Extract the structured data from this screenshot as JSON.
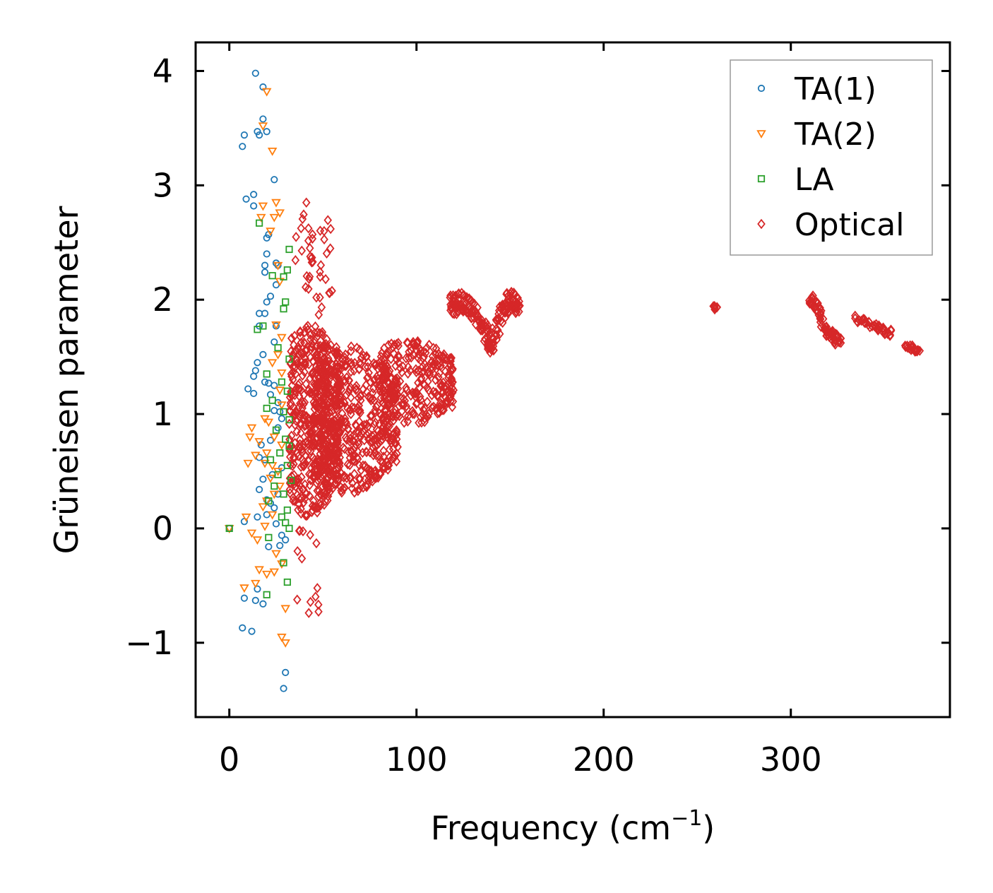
{
  "chart_data": {
    "type": "scatter",
    "xlabel": "Frequency (cm",
    "xlabel_sup": "−1",
    "xlabel_close": ")",
    "ylabel": "Grüneisen parameter",
    "xlim": [
      -18,
      385
    ],
    "ylim": [
      -1.65,
      4.25
    ],
    "xticks": [
      0,
      100,
      200,
      300
    ],
    "xtick_labels": [
      "0",
      "100",
      "200",
      "300"
    ],
    "yticks": [
      -1,
      0,
      1,
      2,
      3,
      4
    ],
    "ytick_labels": [
      "−1",
      "0",
      "1",
      "2",
      "3",
      "4"
    ],
    "legend_position": "top-right",
    "series": [
      {
        "name": "TA(1)",
        "marker": "circle",
        "color": "#1f77b4",
        "points": [
          [
            0,
            0
          ],
          [
            7,
            3.34
          ],
          [
            8,
            3.44
          ],
          [
            14,
            3.98
          ],
          [
            18,
            3.86
          ],
          [
            15,
            3.47
          ],
          [
            16,
            3.44
          ],
          [
            20,
            3.47
          ],
          [
            18,
            3.58
          ],
          [
            13,
            2.92
          ],
          [
            9,
            2.88
          ],
          [
            13,
            2.82
          ],
          [
            24,
            3.05
          ],
          [
            21,
            2.57
          ],
          [
            20,
            2.54
          ],
          [
            20,
            2.4
          ],
          [
            19,
            2.3
          ],
          [
            19,
            2.24
          ],
          [
            25,
            2.32
          ],
          [
            26,
            2.3
          ],
          [
            25,
            2.13
          ],
          [
            22,
            2.03
          ],
          [
            20,
            1.98
          ],
          [
            16,
            1.88
          ],
          [
            19,
            1.88
          ],
          [
            16,
            1.77
          ],
          [
            25,
            1.77
          ],
          [
            24,
            1.63
          ],
          [
            18,
            1.52
          ],
          [
            15,
            1.45
          ],
          [
            14,
            1.38
          ],
          [
            13,
            1.33
          ],
          [
            19,
            1.28
          ],
          [
            21,
            1.27
          ],
          [
            24,
            1.25
          ],
          [
            10,
            1.22
          ],
          [
            13,
            1.18
          ],
          [
            22,
            1.17
          ],
          [
            26,
            1.1
          ],
          [
            24,
            1.03
          ],
          [
            27,
            1.02
          ],
          [
            28,
            0.96
          ],
          [
            26,
            0.88
          ],
          [
            22,
            0.77
          ],
          [
            17,
            0.73
          ],
          [
            16,
            0.62
          ],
          [
            19,
            0.6
          ],
          [
            28,
            0.53
          ],
          [
            23,
            0.47
          ],
          [
            18,
            0.43
          ],
          [
            16,
            0.34
          ],
          [
            26,
            0.3
          ],
          [
            20,
            0.25
          ],
          [
            22,
            0.22
          ],
          [
            24,
            0.18
          ],
          [
            20,
            0.12
          ],
          [
            15,
            0.1
          ],
          [
            8,
            0.06
          ],
          [
            25,
            0.04
          ],
          [
            28,
            -0.06
          ],
          [
            30,
            -0.1
          ],
          [
            27,
            -0.15
          ],
          [
            21,
            -0.16
          ],
          [
            8,
            -0.61
          ],
          [
            14,
            -0.63
          ],
          [
            15,
            -0.53
          ],
          [
            18,
            -0.66
          ],
          [
            7,
            -0.87
          ],
          [
            12,
            -0.9
          ],
          [
            30,
            -1.26
          ],
          [
            29,
            -1.4
          ]
        ]
      },
      {
        "name": "TA(2)",
        "marker": "triangle-down",
        "color": "#ff7f0e",
        "points": [
          [
            0,
            0
          ],
          [
            20,
            3.82
          ],
          [
            18,
            3.52
          ],
          [
            23,
            3.3
          ],
          [
            25,
            2.85
          ],
          [
            18,
            2.82
          ],
          [
            24,
            2.72
          ],
          [
            17,
            2.72
          ],
          [
            27,
            2.76
          ],
          [
            22,
            2.6
          ],
          [
            26,
            2.3
          ],
          [
            27,
            2.16
          ],
          [
            25,
            1.78
          ],
          [
            28,
            1.67
          ],
          [
            26,
            1.52
          ],
          [
            23,
            1.45
          ],
          [
            28,
            1.36
          ],
          [
            27,
            1.21
          ],
          [
            28,
            1.08
          ],
          [
            21,
            0.93
          ],
          [
            19,
            0.96
          ],
          [
            12,
            0.88
          ],
          [
            11,
            0.8
          ],
          [
            16,
            0.76
          ],
          [
            24,
            0.8
          ],
          [
            28,
            0.73
          ],
          [
            20,
            0.66
          ],
          [
            14,
            0.64
          ],
          [
            10,
            0.57
          ],
          [
            19,
            0.57
          ],
          [
            23,
            0.55
          ],
          [
            26,
            0.5
          ],
          [
            22,
            0.44
          ],
          [
            27,
            0.37
          ],
          [
            24,
            0.3
          ],
          [
            20,
            0.24
          ],
          [
            18,
            0.19
          ],
          [
            23,
            0.12
          ],
          [
            9,
            0.1
          ],
          [
            12,
            -0.04
          ],
          [
            19,
            0.02
          ],
          [
            15,
            -0.1
          ],
          [
            25,
            -0.22
          ],
          [
            28,
            -0.31
          ],
          [
            24,
            -0.38
          ],
          [
            16,
            -0.36
          ],
          [
            20,
            -0.4
          ],
          [
            8,
            -0.52
          ],
          [
            14,
            -0.48
          ],
          [
            30,
            -0.7
          ],
          [
            28,
            -0.95
          ],
          [
            30,
            -1.0
          ]
        ]
      },
      {
        "name": "LA",
        "marker": "square",
        "color": "#2ca02c",
        "points": [
          [
            0,
            0
          ],
          [
            16,
            2.67
          ],
          [
            32,
            2.44
          ],
          [
            31,
            2.26
          ],
          [
            29,
            2.2
          ],
          [
            23,
            2.21
          ],
          [
            30,
            1.98
          ],
          [
            29,
            1.92
          ],
          [
            15,
            1.74
          ],
          [
            18,
            1.77
          ],
          [
            26,
            1.58
          ],
          [
            32,
            1.48
          ],
          [
            20,
            1.35
          ],
          [
            28,
            1.28
          ],
          [
            31,
            1.2
          ],
          [
            23,
            1.12
          ],
          [
            20,
            1.05
          ],
          [
            29,
            1.02
          ],
          [
            32,
            0.95
          ],
          [
            25,
            0.86
          ],
          [
            30,
            0.78
          ],
          [
            32,
            0.72
          ],
          [
            27,
            0.66
          ],
          [
            22,
            0.6
          ],
          [
            31,
            0.55
          ],
          [
            26,
            0.47
          ],
          [
            33,
            0.42
          ],
          [
            24,
            0.37
          ],
          [
            29,
            0.3
          ],
          [
            21,
            0.24
          ],
          [
            31,
            0.16
          ],
          [
            28,
            0.1
          ],
          [
            30,
            0.05
          ],
          [
            32,
            0.0
          ],
          [
            21,
            -0.08
          ],
          [
            29,
            -0.3
          ],
          [
            31,
            -0.47
          ],
          [
            20,
            -0.58
          ]
        ]
      },
      {
        "name": "Optical",
        "marker": "diamond",
        "color": "#d62728",
        "points": [],
        "regions": [
          {
            "xmin": 32,
            "xmax": 60,
            "ymin": 0.1,
            "ymax": 1.8,
            "count": 520
          },
          {
            "xmin": 45,
            "xmax": 90,
            "ymin": 0.3,
            "ymax": 1.6,
            "count": 520
          },
          {
            "xmin": 80,
            "xmax": 120,
            "ymin": 0.9,
            "ymax": 1.65,
            "count": 260
          },
          {
            "xmin": 35,
            "xmax": 55,
            "ymin": 1.8,
            "ymax": 2.9,
            "count": 40
          },
          {
            "xmin": 36,
            "xmax": 48,
            "ymin": -0.95,
            "ymax": 0.1,
            "count": 14
          }
        ],
        "curves": [
          {
            "x": [
              118,
              125,
              130,
              136,
              140,
              145,
              150,
              155
            ],
            "y": [
              1.95,
              1.98,
              1.9,
              1.75,
              1.6,
              1.85,
              2.0,
              1.95
            ],
            "spread": 0.09,
            "count": 200
          },
          {
            "x": [
              259,
              261
            ],
            "y": [
              1.93,
              1.93
            ],
            "spread": 0.02,
            "count": 6
          },
          {
            "x": [
              310,
              314,
              318,
              322,
              326
            ],
            "y": [
              2.0,
              1.95,
              1.75,
              1.68,
              1.64
            ],
            "spread": 0.05,
            "count": 80
          },
          {
            "x": [
              333,
              340,
              348,
              354
            ],
            "y": [
              1.84,
              1.8,
              1.74,
              1.7
            ],
            "spread": 0.03,
            "count": 40
          },
          {
            "x": [
              361,
              368
            ],
            "y": [
              1.6,
              1.56
            ],
            "spread": 0.02,
            "count": 20
          }
        ]
      }
    ]
  }
}
